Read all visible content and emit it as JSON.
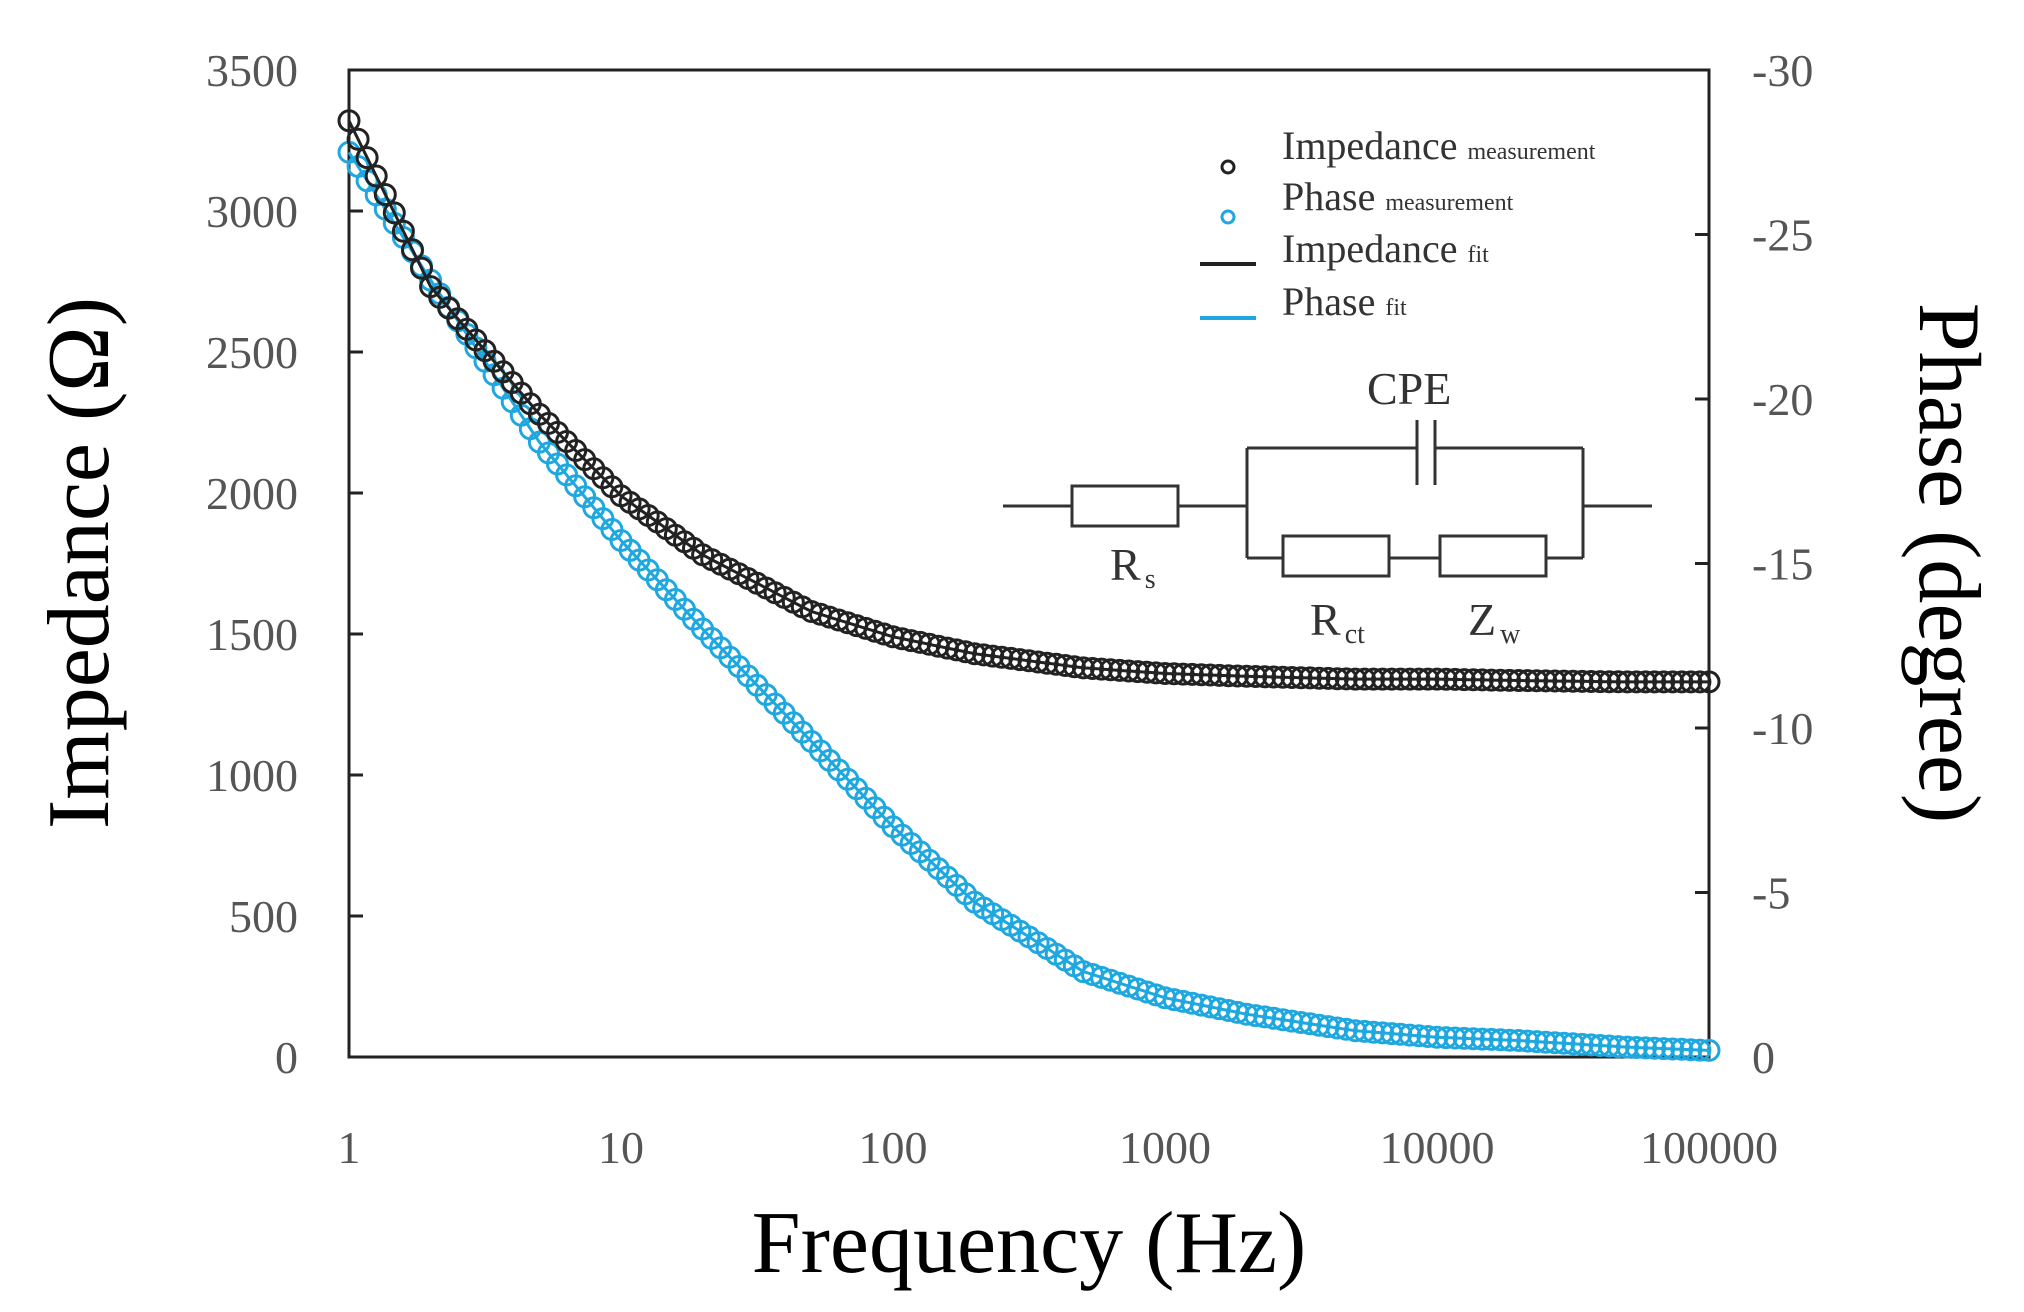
{
  "chart_data": {
    "type": "scatter",
    "title": "",
    "xlabel": "Frequency (Hz)",
    "ylabel": "Impedance (Ω)",
    "y2label": "Phase (degree)",
    "xscale": "log",
    "xlim": [
      1,
      100000
    ],
    "ylim": [
      0,
      3500
    ],
    "y2lim": [
      0,
      -30
    ],
    "x_ticks": [
      "1",
      "10",
      "100",
      "1000",
      "10000",
      "100000"
    ],
    "y_ticks": [
      "0",
      "500",
      "1000",
      "1500",
      "2000",
      "2500",
      "3000",
      "3500"
    ],
    "y2_ticks": [
      "0",
      "-5",
      "-10",
      "-15",
      "-20",
      "-25",
      "-30"
    ],
    "grid": false,
    "legend_position": "top-right",
    "legend": [
      {
        "name": "Impedance",
        "sub": "measurement",
        "kind": "marker",
        "color": "#222222"
      },
      {
        "name": "Phase",
        "sub": "measurement",
        "kind": "marker",
        "color": "#1fa8e0"
      },
      {
        "name": "Impedance",
        "sub": "fit",
        "kind": "line",
        "color": "#222222"
      },
      {
        "name": "Phase",
        "sub": "fit",
        "kind": "line",
        "color": "#1fa8e0"
      }
    ],
    "series": [
      {
        "name": "Impedance measurement",
        "axis": "left",
        "color": "#222222",
        "x": [
          1,
          2,
          5,
          10,
          20,
          50,
          100,
          200,
          500,
          1000,
          2000,
          5000,
          10000,
          20000,
          50000,
          100000
        ],
        "values": [
          3320,
          2730,
          2280,
          1990,
          1780,
          1580,
          1490,
          1430,
          1380,
          1360,
          1350,
          1340,
          1340,
          1335,
          1330,
          1330
        ]
      },
      {
        "name": "Phase measurement",
        "axis": "right",
        "color": "#1fa8e0",
        "x": [
          1,
          2,
          5,
          10,
          20,
          50,
          100,
          200,
          500,
          1000,
          2000,
          5000,
          10000,
          20000,
          50000,
          100000
        ],
        "values": [
          -27.5,
          -23.6,
          -18.7,
          -15.7,
          -13.0,
          -9.6,
          -7.0,
          -4.7,
          -2.6,
          -1.8,
          -1.3,
          -0.8,
          -0.6,
          -0.5,
          -0.3,
          -0.2
        ]
      }
    ]
  },
  "circuit": {
    "labels": {
      "cpe": "CPE",
      "rs": "R",
      "rs_sub": "s",
      "rct": "R",
      "rct_sub": "ct",
      "zw": "Z",
      "zw_sub": "w"
    }
  }
}
